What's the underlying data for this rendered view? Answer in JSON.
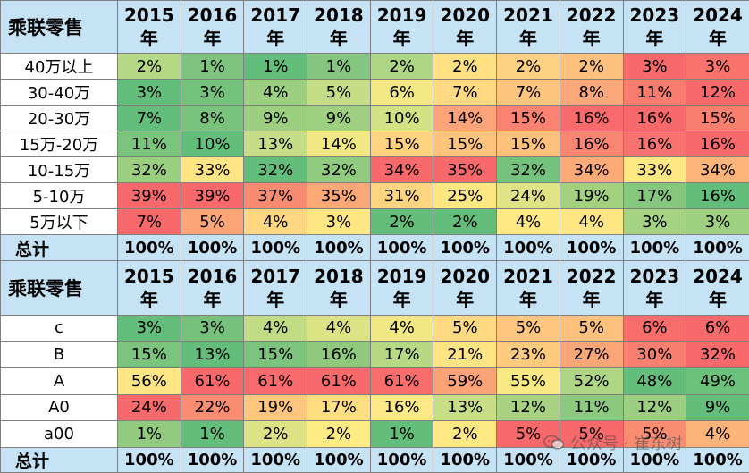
{
  "colors": {
    "header_bg": "#c6e3f5",
    "scale_green": "#63be7b",
    "scale_yellow": "#ffeb84",
    "scale_red": "#f8696b"
  },
  "table1": {
    "header": {
      "label": "乘联零售",
      "years": [
        "2015 年",
        "2016 年",
        "2017 年",
        "2018 年",
        "2019 年",
        "2020 年",
        "2021 年",
        "2022 年",
        "2023 年",
        "2024 年"
      ]
    },
    "rows": [
      {
        "label": "40万以上",
        "values": [
          "2%",
          "1%",
          "1%",
          "1%",
          "2%",
          "2%",
          "2%",
          "2%",
          "3%",
          "3%"
        ],
        "colors": [
          "#b5d885",
          "#7ec47e",
          "#63be7b",
          "#84c67f",
          "#aed583",
          "#ffe082",
          "#fed081",
          "#fdc17d",
          "#f8696b",
          "#f9726c"
        ]
      },
      {
        "label": "30-40万",
        "values": [
          "3%",
          "3%",
          "4%",
          "5%",
          "6%",
          "7%",
          "7%",
          "8%",
          "11%",
          "12%"
        ],
        "colors": [
          "#63be7b",
          "#75c27c",
          "#9ccf80",
          "#c6dd87",
          "#f3e884",
          "#ffd882",
          "#fdc47e",
          "#fca87a",
          "#f97c6e",
          "#f8696b"
        ]
      },
      {
        "label": "20-30万",
        "values": [
          "7%",
          "8%",
          "9%",
          "9%",
          "10%",
          "14%",
          "15%",
          "16%",
          "16%",
          "15%"
        ],
        "colors": [
          "#63be7b",
          "#7ac37d",
          "#9ccf80",
          "#9fd081",
          "#d4e286",
          "#fca37a",
          "#f98370",
          "#f86a6b",
          "#f8696b",
          "#f9806f"
        ]
      },
      {
        "label": "15万-20万",
        "values": [
          "11%",
          "10%",
          "13%",
          "14%",
          "15%",
          "15%",
          "15%",
          "16%",
          "16%",
          "16%"
        ],
        "colors": [
          "#7bc47d",
          "#63be7b",
          "#c5dd87",
          "#f1e884",
          "#ffd380",
          "#fec47e",
          "#fec17d",
          "#f98572",
          "#f97470",
          "#f8696b"
        ]
      },
      {
        "label": "10-15万",
        "values": [
          "32%",
          "33%",
          "32%",
          "32%",
          "34%",
          "35%",
          "32%",
          "34%",
          "33%",
          "34%"
        ],
        "colors": [
          "#9bcf80",
          "#ffe483",
          "#63be7b",
          "#90cb7f",
          "#f8696b",
          "#f8696b",
          "#74c27c",
          "#fcaa78",
          "#ffe784",
          "#fdb57a"
        ]
      },
      {
        "label": "5-10万",
        "values": [
          "39%",
          "39%",
          "37%",
          "35%",
          "31%",
          "25%",
          "24%",
          "19%",
          "17%",
          "16%"
        ],
        "colors": [
          "#f8696b",
          "#f8696b",
          "#f98b70",
          "#fba876",
          "#fed480",
          "#fee683",
          "#dfe385",
          "#a4d180",
          "#84c77d",
          "#63be7b"
        ]
      },
      {
        "label": "5万以下",
        "values": [
          "7%",
          "5%",
          "4%",
          "3%",
          "2%",
          "2%",
          "4%",
          "4%",
          "3%",
          "3%"
        ],
        "colors": [
          "#f8696b",
          "#fca577",
          "#ffd682",
          "#fee683",
          "#63be7b",
          "#63be7b",
          "#ffe984",
          "#ffe684",
          "#a6d283",
          "#9fd081"
        ]
      }
    ],
    "total": {
      "label": "总计",
      "values": [
        "100%",
        "100%",
        "100%",
        "100%",
        "100%",
        "100%",
        "100%",
        "100%",
        "100%",
        "100%"
      ]
    }
  },
  "table2": {
    "header": {
      "label": "乘联零售",
      "years": [
        "2015 年",
        "2016 年",
        "2017 年",
        "2018 年",
        "2019 年",
        "2020 年",
        "2021 年",
        "2022 年",
        "2023 年",
        "2024 年"
      ]
    },
    "rows": [
      {
        "label": "c",
        "values": [
          "3%",
          "3%",
          "4%",
          "4%",
          "4%",
          "5%",
          "5%",
          "5%",
          "6%",
          "6%"
        ],
        "colors": [
          "#63be7b",
          "#76c27c",
          "#c2dc86",
          "#dbe385",
          "#f1e884",
          "#ffda82",
          "#fec67e",
          "#fdc07d",
          "#f86d6b",
          "#f8696b"
        ]
      },
      {
        "label": "B",
        "values": [
          "15%",
          "13%",
          "15%",
          "16%",
          "17%",
          "21%",
          "23%",
          "27%",
          "30%",
          "32%"
        ],
        "colors": [
          "#7ac47d",
          "#63be7b",
          "#7cc47d",
          "#8ec97e",
          "#b8d984",
          "#ffe483",
          "#fdca7e",
          "#fba676",
          "#f98070",
          "#f8696b"
        ]
      },
      {
        "label": "A",
        "values": [
          "56%",
          "61%",
          "61%",
          "61%",
          "61%",
          "59%",
          "55%",
          "52%",
          "48%",
          "49%"
        ],
        "colors": [
          "#ffe684",
          "#f8696b",
          "#f86a6b",
          "#f8696b",
          "#f86c6b",
          "#fba276",
          "#f8e984",
          "#aed583",
          "#63be7b",
          "#6cc17c"
        ]
      },
      {
        "label": "A0",
        "values": [
          "24%",
          "22%",
          "19%",
          "17%",
          "16%",
          "13%",
          "12%",
          "11%",
          "12%",
          "9%"
        ],
        "colors": [
          "#f8696b",
          "#fa8c71",
          "#fec67e",
          "#ffde82",
          "#fde985",
          "#c8de86",
          "#a8d282",
          "#8cc97f",
          "#9ece81",
          "#63be7b"
        ]
      },
      {
        "label": "a00",
        "values": [
          "1%",
          "1%",
          "2%",
          "2%",
          "1%",
          "2%",
          "5%",
          "5%",
          "5%",
          "4%"
        ],
        "colors": [
          "#92cb7f",
          "#63be7b",
          "#dde385",
          "#ffeb84",
          "#63be7b",
          "#ffe784",
          "#f8696b",
          "#f8696b",
          "#fa8d71",
          "#fdb37a"
        ]
      }
    ],
    "total": {
      "label": "总计",
      "values": [
        "100%",
        "100%",
        "100%",
        "100%",
        "100%",
        "100%",
        "100%",
        "100%",
        "100%",
        "100%"
      ]
    }
  },
  "watermark": {
    "text": "公众号 · 崔东树",
    "icon": "wechat-icon"
  }
}
